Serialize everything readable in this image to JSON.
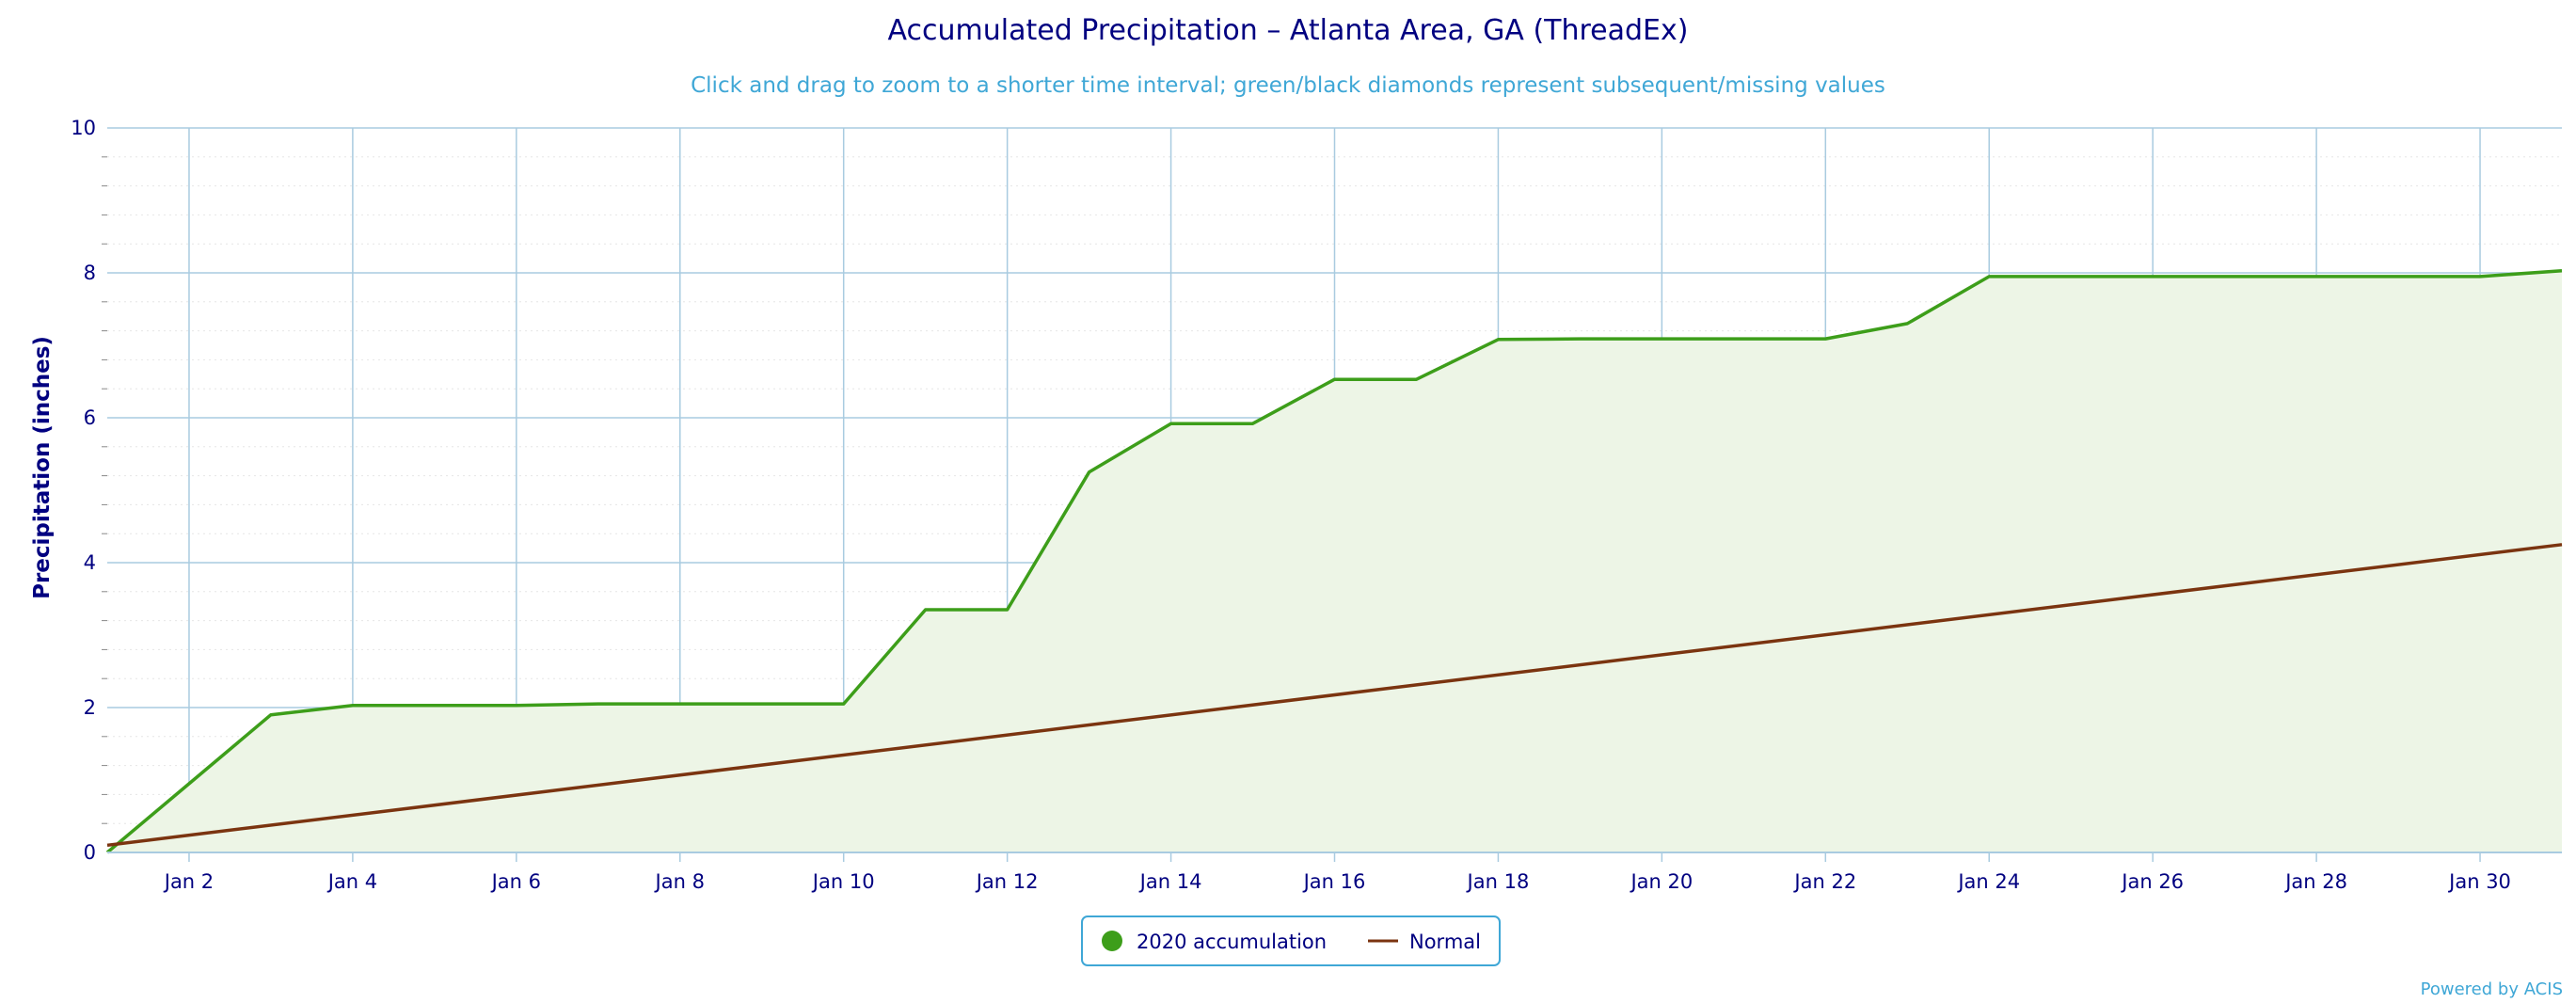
{
  "chart_data": {
    "type": "area",
    "title": "Accumulated Precipitation – Atlanta Area, GA (ThreadEx)",
    "subtitle": "Click and drag to zoom to a shorter time interval; green/black diamonds represent subsequent/missing values",
    "ylabel": "Precipitation (inches)",
    "xlabel": "",
    "ylim": [
      0,
      10
    ],
    "xlim": [
      1,
      31
    ],
    "y_ticks": [
      0,
      2,
      4,
      6,
      8,
      10
    ],
    "x_ticks": [
      2,
      4,
      6,
      8,
      10,
      12,
      14,
      16,
      18,
      20,
      22,
      24,
      26,
      28,
      30
    ],
    "x_tick_labels": [
      "Jan 2",
      "Jan 4",
      "Jan 6",
      "Jan 8",
      "Jan 10",
      "Jan 12",
      "Jan 14",
      "Jan 16",
      "Jan 18",
      "Jan 20",
      "Jan 22",
      "Jan 24",
      "Jan 26",
      "Jan 28",
      "Jan 30"
    ],
    "grid": true,
    "legend_position": "bottom-center",
    "series": [
      {
        "name": "2020 accumulation",
        "style": "area",
        "color": "#3d9e1a",
        "fill": "#edf5e6",
        "x": [
          1,
          2,
          3,
          4,
          5,
          6,
          7,
          8,
          9,
          10,
          11,
          12,
          13,
          14,
          15,
          16,
          17,
          18,
          19,
          20,
          21,
          22,
          23,
          24,
          25,
          26,
          27,
          28,
          29,
          30,
          31
        ],
        "values": [
          0,
          0.95,
          1.9,
          2.03,
          2.03,
          2.03,
          2.05,
          2.05,
          2.05,
          2.05,
          3.35,
          3.35,
          5.25,
          5.92,
          5.92,
          6.53,
          6.53,
          7.08,
          7.09,
          7.09,
          7.09,
          7.09,
          7.3,
          7.95,
          7.95,
          7.95,
          7.95,
          7.95,
          7.95,
          7.95,
          8.03
        ]
      },
      {
        "name": "Normal",
        "style": "line",
        "color": "#7b3410",
        "x": [
          1,
          31
        ],
        "values": [
          0.1,
          4.25
        ]
      }
    ]
  },
  "credit": "Powered by ACIS"
}
